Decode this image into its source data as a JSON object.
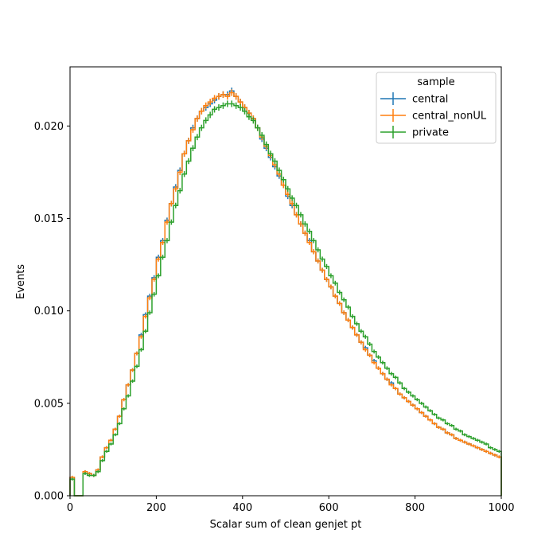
{
  "chart_data": {
    "type": "line",
    "step": true,
    "title": "",
    "xlabel": "Scalar sum of clean genjet pt",
    "ylabel": "Events",
    "xlim": [
      0,
      1000
    ],
    "ylim": [
      0,
      0.0232
    ],
    "xticks": [
      0,
      200,
      400,
      600,
      800,
      1000
    ],
    "xtick_labels": [
      "0",
      "200",
      "400",
      "600",
      "800",
      "1000"
    ],
    "yticks": [
      0,
      0.005,
      0.01,
      0.015,
      0.02
    ],
    "ytick_labels": [
      "0.000",
      "0.005",
      "0.010",
      "0.015",
      "0.020"
    ],
    "grid": false,
    "legend": {
      "title": "sample",
      "placement": "top-right"
    },
    "bin_edges": [
      0,
      10,
      20,
      30,
      40,
      50,
      60,
      70,
      80,
      90,
      100,
      110,
      120,
      130,
      140,
      150,
      160,
      170,
      180,
      190,
      200,
      210,
      220,
      230,
      240,
      250,
      260,
      270,
      280,
      290,
      300,
      310,
      320,
      330,
      340,
      350,
      360,
      370,
      380,
      390,
      400,
      410,
      420,
      430,
      440,
      450,
      460,
      470,
      480,
      490,
      500,
      510,
      520,
      530,
      540,
      550,
      560,
      570,
      580,
      590,
      600,
      610,
      620,
      630,
      640,
      650,
      660,
      670,
      680,
      690,
      700,
      710,
      720,
      730,
      740,
      750,
      760,
      770,
      780,
      790,
      800,
      810,
      820,
      830,
      840,
      850,
      860,
      870,
      880,
      890,
      900,
      910,
      920,
      930,
      940,
      950,
      960,
      970,
      980,
      990,
      1000
    ],
    "series": [
      {
        "name": "central",
        "color": "#1f77b4",
        "errorbars": true,
        "values": [
          0.001,
          0.0,
          0.0,
          0.0013,
          0.0012,
          0.0011,
          0.0014,
          0.0021,
          0.0026,
          0.003,
          0.0036,
          0.0043,
          0.0052,
          0.006,
          0.0068,
          0.0077,
          0.0087,
          0.0098,
          0.0108,
          0.0118,
          0.0129,
          0.0138,
          0.0149,
          0.0158,
          0.0167,
          0.0176,
          0.0185,
          0.0192,
          0.0199,
          0.0204,
          0.0208,
          0.021,
          0.0212,
          0.0214,
          0.0216,
          0.0217,
          0.0217,
          0.0219,
          0.0216,
          0.0213,
          0.021,
          0.0207,
          0.0204,
          0.0199,
          0.0193,
          0.0188,
          0.0183,
          0.0178,
          0.0173,
          0.0168,
          0.0162,
          0.0157,
          0.0152,
          0.0147,
          0.0142,
          0.0138,
          0.0132,
          0.0127,
          0.0122,
          0.0117,
          0.0113,
          0.0108,
          0.0104,
          0.0099,
          0.0095,
          0.0091,
          0.0087,
          0.0083,
          0.008,
          0.0076,
          0.0073,
          0.0069,
          0.0066,
          0.0063,
          0.0061,
          0.0058,
          0.0055,
          0.0053,
          0.0051,
          0.0049,
          0.0047,
          0.0045,
          0.0043,
          0.0041,
          0.0039,
          0.0037,
          0.0036,
          0.0034,
          0.0033,
          0.0031,
          0.003,
          0.0029,
          0.0028,
          0.0027,
          0.0026,
          0.0025,
          0.0024,
          0.0023,
          0.0022,
          0.0021
        ]
      },
      {
        "name": "central_nonUL",
        "color": "#ff7f0e",
        "errorbars": true,
        "values": [
          0.001,
          0.0,
          0.0,
          0.0013,
          0.0012,
          0.0011,
          0.0014,
          0.0021,
          0.0026,
          0.003,
          0.0036,
          0.0043,
          0.0052,
          0.006,
          0.0068,
          0.0077,
          0.0086,
          0.0097,
          0.0107,
          0.0117,
          0.0128,
          0.0137,
          0.0148,
          0.0158,
          0.0166,
          0.0175,
          0.0185,
          0.0192,
          0.0198,
          0.0204,
          0.0208,
          0.0211,
          0.0213,
          0.0215,
          0.0216,
          0.0217,
          0.0216,
          0.0218,
          0.0216,
          0.0213,
          0.021,
          0.0207,
          0.0204,
          0.0199,
          0.0194,
          0.0189,
          0.0184,
          0.0179,
          0.0174,
          0.0168,
          0.0163,
          0.0158,
          0.0152,
          0.0147,
          0.0142,
          0.0137,
          0.0132,
          0.0127,
          0.0122,
          0.0117,
          0.0113,
          0.0108,
          0.0104,
          0.0099,
          0.0095,
          0.0091,
          0.0087,
          0.0083,
          0.0079,
          0.0076,
          0.0072,
          0.0069,
          0.0066,
          0.0063,
          0.006,
          0.0058,
          0.0055,
          0.0053,
          0.0051,
          0.0049,
          0.0047,
          0.0045,
          0.0043,
          0.0041,
          0.0039,
          0.0037,
          0.0036,
          0.0034,
          0.0033,
          0.0031,
          0.003,
          0.0029,
          0.0028,
          0.0027,
          0.0026,
          0.0025,
          0.0024,
          0.0023,
          0.0022,
          0.0021
        ]
      },
      {
        "name": "private",
        "color": "#2ca02c",
        "errorbars": true,
        "values": [
          0.0009,
          0.0,
          0.0,
          0.0012,
          0.0011,
          0.0011,
          0.0013,
          0.0019,
          0.0024,
          0.0028,
          0.0033,
          0.0039,
          0.0047,
          0.0054,
          0.0062,
          0.007,
          0.0079,
          0.0089,
          0.0099,
          0.0109,
          0.0119,
          0.0129,
          0.0138,
          0.0148,
          0.0157,
          0.0165,
          0.0174,
          0.0181,
          0.0188,
          0.0194,
          0.0199,
          0.0203,
          0.0206,
          0.0209,
          0.021,
          0.0211,
          0.0212,
          0.0212,
          0.0211,
          0.021,
          0.0208,
          0.0205,
          0.0203,
          0.0199,
          0.0195,
          0.019,
          0.0185,
          0.0181,
          0.0176,
          0.0171,
          0.0166,
          0.0161,
          0.0157,
          0.0152,
          0.0147,
          0.0143,
          0.0138,
          0.0133,
          0.0128,
          0.0124,
          0.0119,
          0.0115,
          0.011,
          0.0106,
          0.0102,
          0.0097,
          0.0093,
          0.0089,
          0.0086,
          0.0082,
          0.0078,
          0.0075,
          0.0072,
          0.0069,
          0.0066,
          0.0064,
          0.0061,
          0.0058,
          0.0056,
          0.0054,
          0.0052,
          0.005,
          0.0048,
          0.0046,
          0.0044,
          0.0042,
          0.0041,
          0.0039,
          0.0038,
          0.0036,
          0.0035,
          0.0033,
          0.0032,
          0.0031,
          0.003,
          0.0029,
          0.0028,
          0.0026,
          0.0025,
          0.0024
        ]
      }
    ]
  }
}
